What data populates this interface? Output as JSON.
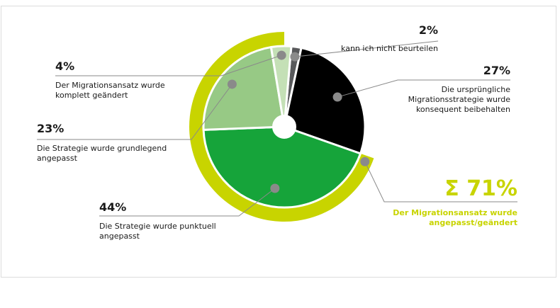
{
  "chart_data": {
    "type": "pie",
    "slices": [
      {
        "value": 2,
        "label": "kann ich nicht beurteilen",
        "color": "#58595b"
      },
      {
        "value": 27,
        "label": "Die ursprüngliche Migrationsstrategie wurde konsequent beibehalten",
        "color": "#000000"
      },
      {
        "value": 44,
        "label": "Die Strategie wurde punktuell angepasst",
        "color": "#16a43a"
      },
      {
        "value": 23,
        "label": "Die Strategie wurde grundlegend angepasst",
        "color": "#97c985"
      },
      {
        "value": 4,
        "label": "Der Migrationsansatz wurde komplett geändert",
        "color": "#c4e0b6"
      }
    ],
    "annotations": [
      {
        "pct": "2%",
        "lines": [
          "kann ich nicht beurteilen"
        ]
      },
      {
        "pct": "27%",
        "lines": [
          "Die ursprüngliche",
          "Migrationsstrategie wurde",
          "konsequent beibehalten"
        ]
      },
      {
        "pct": "44%",
        "lines": [
          "Die Strategie wurde punktuell",
          "angepasst"
        ]
      },
      {
        "pct": "23%",
        "lines": [
          "Die Strategie wurde grundlegend",
          "angepasst"
        ]
      },
      {
        "pct": "4%",
        "lines": [
          "Der Migrationsansatz wurde",
          "komplett geändert"
        ]
      }
    ],
    "summary": {
      "pct": "Σ 71%",
      "lines": [
        "Der Migrationsansatz wurde",
        "angepasst/geändert"
      ],
      "value": 71,
      "color": "#c8d400"
    },
    "marker_color": "#8a8a8a"
  }
}
